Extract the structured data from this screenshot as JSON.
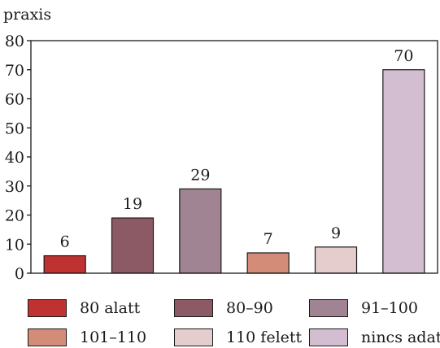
{
  "chart_data": {
    "type": "bar",
    "ylabel": "praxis",
    "ylim": [
      0,
      80
    ],
    "yticks": [
      0,
      10,
      20,
      30,
      40,
      50,
      60,
      70,
      80
    ],
    "grid": false,
    "legend_position": "bottom",
    "categories": [
      "80 alatt",
      "80–90",
      "91–100",
      "101–110",
      "110 felett",
      "nincs adat"
    ],
    "values": [
      6,
      19,
      29,
      7,
      9,
      70
    ],
    "value_labels": [
      "6",
      "19",
      "29",
      "7",
      "9",
      "70"
    ],
    "colors": [
      "#c03232",
      "#8c5a64",
      "#a08494",
      "#d28c78",
      "#e6cdcd",
      "#d2bed0"
    ]
  }
}
